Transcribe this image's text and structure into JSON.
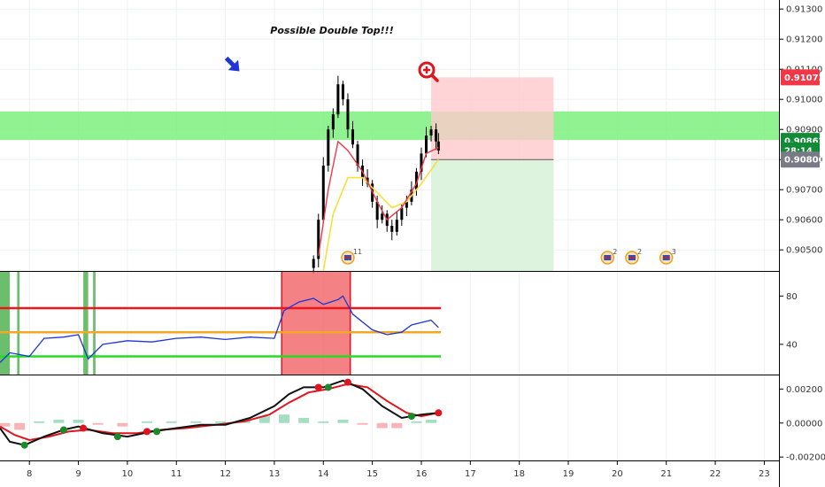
{
  "annotation": "Possible Double Top!!!",
  "price_badges": [
    {
      "label": "0.91073",
      "price": 0.91073,
      "color": "#f23645"
    },
    {
      "label": "0.90862",
      "price": 0.90862,
      "color": "#138a36"
    },
    {
      "label": "28:14",
      "price": 0.9083,
      "color": "#138a36"
    },
    {
      "label": "0.90800",
      "price": 0.908,
      "color": "#787b86"
    }
  ],
  "events": [
    {
      "day": 14.5,
      "count": "11"
    },
    {
      "day": 19.8,
      "count": "2"
    },
    {
      "day": 20.3,
      "count": "2"
    },
    {
      "day": 21.0,
      "count": "3"
    }
  ],
  "colors": {
    "zone_green": "#7cf07c",
    "tp_zone": "#d9f2d9",
    "sl_zone": "#ffc9cc",
    "candle": "#000000",
    "ema_fast": "#f23645",
    "ema_slow": "#f7e03a",
    "rsi_line": "#1e35d8",
    "rsi_upper": "#f0141e",
    "rsi_mid": "#f5a623",
    "rsi_lower": "#22dd22",
    "overbought": "#f26b6e",
    "macd_line": "#111111",
    "signal_line": "#e0141e"
  },
  "icons": [
    "blue-arrow-icon",
    "magnifier-plus-icon",
    "flag-icon"
  ],
  "chart_data": [
    {
      "type": "candlestick",
      "panel": "price",
      "title": "",
      "x_range": [
        7.4,
        23.3
      ],
      "ylim": [
        0.9043,
        0.9133
      ],
      "y_ticks": [
        "0.91300",
        "0.91200",
        "0.91100",
        "0.91000",
        "0.90900",
        "0.90800",
        "0.90700",
        "0.90600",
        "0.90500"
      ],
      "y_tick_values": [
        0.913,
        0.912,
        0.911,
        0.91,
        0.909,
        0.908,
        0.907,
        0.906,
        0.905
      ],
      "horizontal_zone": {
        "from": 0.90865,
        "to": 0.9096
      },
      "position": {
        "x_start": 16.2,
        "x_end": 18.7,
        "entry": 0.908,
        "stop": 0.91073,
        "target": 0.9043
      },
      "candles_close": [
        {
          "x": 13.8,
          "close": 0.9047
        },
        {
          "x": 13.9,
          "close": 0.906
        },
        {
          "x": 14.0,
          "close": 0.9078
        },
        {
          "x": 14.1,
          "close": 0.909
        },
        {
          "x": 14.2,
          "close": 0.9095
        },
        {
          "x": 14.3,
          "close": 0.9105
        },
        {
          "x": 14.4,
          "close": 0.91
        },
        {
          "x": 14.5,
          "close": 0.909
        },
        {
          "x": 14.6,
          "close": 0.9085
        },
        {
          "x": 14.7,
          "close": 0.9078
        },
        {
          "x": 14.8,
          "close": 0.9074
        },
        {
          "x": 14.9,
          "close": 0.9072
        },
        {
          "x": 15.0,
          "close": 0.9066
        },
        {
          "x": 15.1,
          "close": 0.906
        },
        {
          "x": 15.2,
          "close": 0.9062
        },
        {
          "x": 15.3,
          "close": 0.9058
        },
        {
          "x": 15.4,
          "close": 0.9056
        },
        {
          "x": 15.5,
          "close": 0.906
        },
        {
          "x": 15.6,
          "close": 0.9064
        },
        {
          "x": 15.7,
          "close": 0.9066
        },
        {
          "x": 15.8,
          "close": 0.907
        },
        {
          "x": 15.9,
          "close": 0.9076
        },
        {
          "x": 16.0,
          "close": 0.9082
        },
        {
          "x": 16.1,
          "close": 0.9088
        },
        {
          "x": 16.2,
          "close": 0.909
        },
        {
          "x": 16.3,
          "close": 0.9086
        },
        {
          "x": 16.35,
          "close": 0.9083
        }
      ],
      "ema_fast": [
        {
          "x": 13.9,
          "y": 0.9048
        },
        {
          "x": 14.1,
          "y": 0.907
        },
        {
          "x": 14.3,
          "y": 0.9086
        },
        {
          "x": 14.5,
          "y": 0.9083
        },
        {
          "x": 14.8,
          "y": 0.9076
        },
        {
          "x": 15.1,
          "y": 0.9066
        },
        {
          "x": 15.3,
          "y": 0.906
        },
        {
          "x": 15.6,
          "y": 0.9064
        },
        {
          "x": 15.9,
          "y": 0.9072
        },
        {
          "x": 16.1,
          "y": 0.9082
        },
        {
          "x": 16.35,
          "y": 0.9084
        }
      ],
      "ema_slow": [
        {
          "x": 14.0,
          "y": 0.9043
        },
        {
          "x": 14.2,
          "y": 0.9062
        },
        {
          "x": 14.5,
          "y": 0.9074
        },
        {
          "x": 14.8,
          "y": 0.9074
        },
        {
          "x": 15.1,
          "y": 0.9069
        },
        {
          "x": 15.4,
          "y": 0.9064
        },
        {
          "x": 15.7,
          "y": 0.9066
        },
        {
          "x": 16.0,
          "y": 0.9072
        },
        {
          "x": 16.35,
          "y": 0.908
        }
      ]
    },
    {
      "type": "line",
      "panel": "rsi",
      "ylim": [
        15,
        100
      ],
      "y_ticks": [
        "80",
        "40"
      ],
      "y_tick_values": [
        80,
        40
      ],
      "levels": {
        "upper": 70,
        "mid": 50,
        "lower": 30
      },
      "overbought_region": {
        "x_start": 13.15,
        "x_end": 14.55
      },
      "green_bands": [
        [
          7.4,
          7.6
        ],
        [
          7.75,
          7.8
        ],
        [
          9.1,
          9.2
        ],
        [
          9.3,
          9.35
        ]
      ],
      "series": [
        {
          "x": 7.4,
          "y": 25
        },
        {
          "x": 7.6,
          "y": 33
        },
        {
          "x": 8.0,
          "y": 30
        },
        {
          "x": 8.3,
          "y": 45
        },
        {
          "x": 8.7,
          "y": 46
        },
        {
          "x": 9.0,
          "y": 48
        },
        {
          "x": 9.2,
          "y": 28
        },
        {
          "x": 9.5,
          "y": 40
        },
        {
          "x": 10.0,
          "y": 43
        },
        {
          "x": 10.5,
          "y": 42
        },
        {
          "x": 11.0,
          "y": 45
        },
        {
          "x": 11.5,
          "y": 46
        },
        {
          "x": 12.0,
          "y": 44
        },
        {
          "x": 12.5,
          "y": 46
        },
        {
          "x": 13.0,
          "y": 45
        },
        {
          "x": 13.2,
          "y": 68
        },
        {
          "x": 13.5,
          "y": 75
        },
        {
          "x": 13.8,
          "y": 78
        },
        {
          "x": 14.0,
          "y": 73
        },
        {
          "x": 14.3,
          "y": 77
        },
        {
          "x": 14.4,
          "y": 80
        },
        {
          "x": 14.6,
          "y": 65
        },
        {
          "x": 15.0,
          "y": 52
        },
        {
          "x": 15.3,
          "y": 48
        },
        {
          "x": 15.6,
          "y": 50
        },
        {
          "x": 15.8,
          "y": 56
        },
        {
          "x": 16.0,
          "y": 58
        },
        {
          "x": 16.2,
          "y": 60
        },
        {
          "x": 16.35,
          "y": 54
        }
      ]
    },
    {
      "type": "line",
      "panel": "macd",
      "ylim": [
        -0.0022,
        0.0028
      ],
      "y_ticks": [
        "0.00200",
        "0.00000",
        "-0.00200"
      ],
      "y_tick_values": [
        0.002,
        0.0,
        -0.002
      ],
      "x_ticks": [
        "8",
        "9",
        "10",
        "11",
        "12",
        "13",
        "14",
        "15",
        "16",
        "17",
        "18",
        "19",
        "20",
        "21",
        "22",
        "23"
      ],
      "macd": [
        {
          "x": 7.4,
          "y": -0.0003
        },
        {
          "x": 7.6,
          "y": -0.0011
        },
        {
          "x": 7.9,
          "y": -0.0013
        },
        {
          "x": 8.3,
          "y": -0.0008
        },
        {
          "x": 8.7,
          "y": -0.0004
        },
        {
          "x": 9.0,
          "y": -0.0002
        },
        {
          "x": 9.5,
          "y": -0.0006
        },
        {
          "x": 10.0,
          "y": -0.0008
        },
        {
          "x": 10.5,
          "y": -0.0005
        },
        {
          "x": 11.0,
          "y": -0.0003
        },
        {
          "x": 11.5,
          "y": -0.0001
        },
        {
          "x": 12.0,
          "y": -0.0001
        },
        {
          "x": 12.5,
          "y": 0.0003
        },
        {
          "x": 13.0,
          "y": 0.001
        },
        {
          "x": 13.3,
          "y": 0.0017
        },
        {
          "x": 13.6,
          "y": 0.0021
        },
        {
          "x": 14.0,
          "y": 0.0021
        },
        {
          "x": 14.4,
          "y": 0.0025
        },
        {
          "x": 14.8,
          "y": 0.002
        },
        {
          "x": 15.2,
          "y": 0.001
        },
        {
          "x": 15.6,
          "y": 0.0003
        },
        {
          "x": 16.0,
          "y": 0.0005
        },
        {
          "x": 16.35,
          "y": 0.0006
        }
      ],
      "signal": [
        {
          "x": 7.4,
          "y": -0.0002
        },
        {
          "x": 7.7,
          "y": -0.0007
        },
        {
          "x": 8.0,
          "y": -0.001
        },
        {
          "x": 8.4,
          "y": -0.0008
        },
        {
          "x": 8.8,
          "y": -0.0005
        },
        {
          "x": 9.2,
          "y": -0.0004
        },
        {
          "x": 9.7,
          "y": -0.0006
        },
        {
          "x": 10.2,
          "y": -0.0006
        },
        {
          "x": 10.7,
          "y": -0.0004
        },
        {
          "x": 11.2,
          "y": -0.0003
        },
        {
          "x": 11.8,
          "y": -0.0001
        },
        {
          "x": 12.4,
          "y": 0.0001
        },
        {
          "x": 12.9,
          "y": 0.0005
        },
        {
          "x": 13.3,
          "y": 0.0012
        },
        {
          "x": 13.7,
          "y": 0.0018
        },
        {
          "x": 14.1,
          "y": 0.002
        },
        {
          "x": 14.5,
          "y": 0.0023
        },
        {
          "x": 14.9,
          "y": 0.0021
        },
        {
          "x": 15.3,
          "y": 0.0013
        },
        {
          "x": 15.7,
          "y": 0.0006
        },
        {
          "x": 16.0,
          "y": 0.0004
        },
        {
          "x": 16.35,
          "y": 0.0006
        }
      ],
      "crosses": [
        {
          "x": 7.9,
          "y": -0.0013,
          "kind": "bull"
        },
        {
          "x": 8.7,
          "y": -0.0004,
          "kind": "bull"
        },
        {
          "x": 9.1,
          "y": -0.0003,
          "kind": "bear"
        },
        {
          "x": 9.8,
          "y": -0.0008,
          "kind": "bull"
        },
        {
          "x": 10.4,
          "y": -0.0005,
          "kind": "bear"
        },
        {
          "x": 10.6,
          "y": -0.0005,
          "kind": "bull"
        },
        {
          "x": 13.9,
          "y": 0.0021,
          "kind": "bear"
        },
        {
          "x": 14.1,
          "y": 0.0021,
          "kind": "bull"
        },
        {
          "x": 14.5,
          "y": 0.0024,
          "kind": "bear"
        },
        {
          "x": 15.8,
          "y": 0.0004,
          "kind": "bull"
        },
        {
          "x": 16.35,
          "y": 0.0006,
          "kind": "bear"
        }
      ],
      "histogram": [
        {
          "x": 7.5,
          "y": -0.0002
        },
        {
          "x": 7.8,
          "y": -0.0004
        },
        {
          "x": 8.2,
          "y": 0.0001
        },
        {
          "x": 8.6,
          "y": 0.0002
        },
        {
          "x": 9.0,
          "y": 0.0002
        },
        {
          "x": 9.4,
          "y": -0.0001
        },
        {
          "x": 9.9,
          "y": -0.0002
        },
        {
          "x": 10.4,
          "y": 0.0001
        },
        {
          "x": 10.9,
          "y": 0.0001
        },
        {
          "x": 11.4,
          "y": 0.0001
        },
        {
          "x": 11.9,
          "y": 0.0001
        },
        {
          "x": 12.4,
          "y": 0.0002
        },
        {
          "x": 12.8,
          "y": 0.0004
        },
        {
          "x": 13.2,
          "y": 0.0005
        },
        {
          "x": 13.6,
          "y": 0.0003
        },
        {
          "x": 14.0,
          "y": 0.0001
        },
        {
          "x": 14.4,
          "y": 0.0002
        },
        {
          "x": 14.8,
          "y": -0.0001
        },
        {
          "x": 15.2,
          "y": -0.0003
        },
        {
          "x": 15.5,
          "y": -0.0003
        },
        {
          "x": 15.9,
          "y": 0.0001
        },
        {
          "x": 16.2,
          "y": 0.0002
        }
      ]
    }
  ]
}
